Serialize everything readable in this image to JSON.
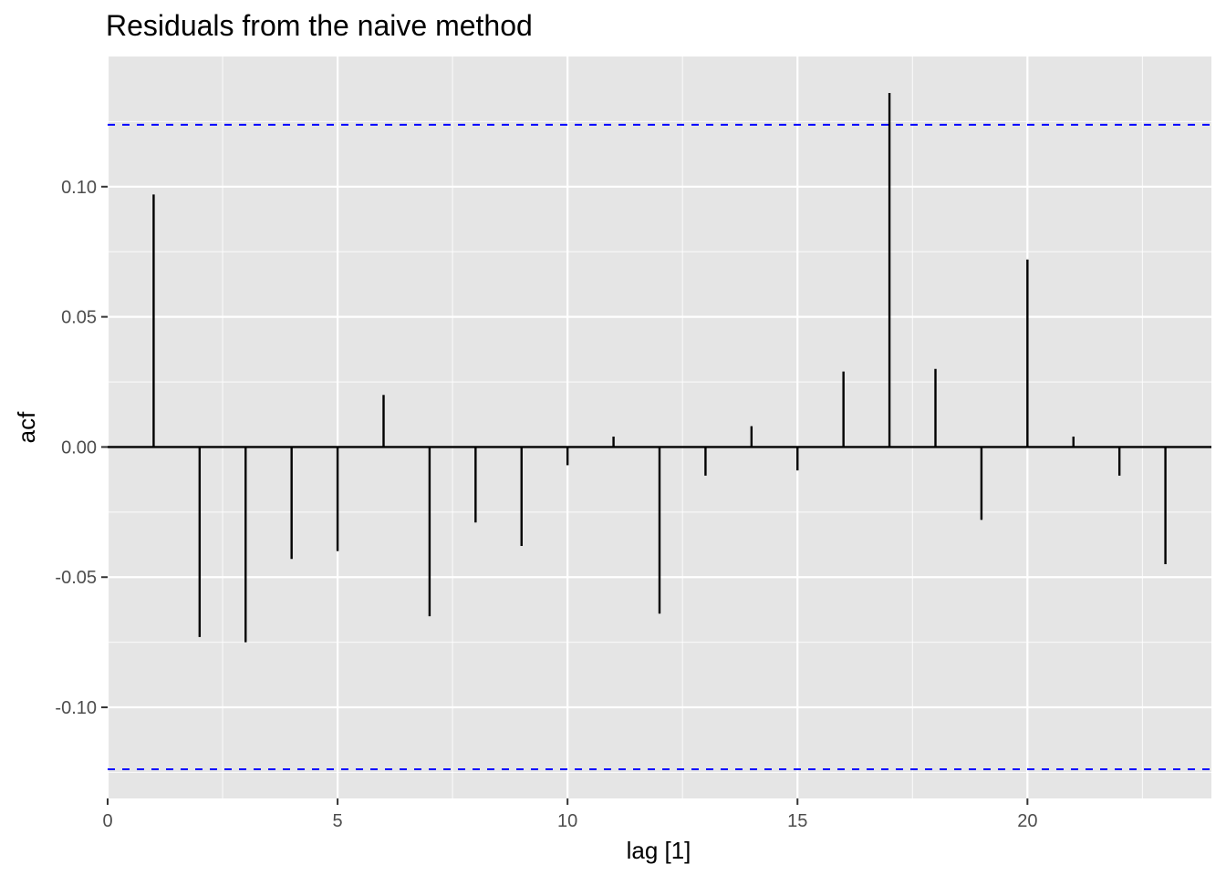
{
  "chart_data": {
    "type": "bar",
    "title": "Residuals from the naive method",
    "xlabel": "lag [1]",
    "ylabel": "acf",
    "xlim": [
      0,
      24
    ],
    "ylim": [
      -0.135,
      0.15
    ],
    "x_ticks": [
      0,
      5,
      10,
      15,
      20
    ],
    "x_tick_labels": [
      "0",
      "5",
      "10",
      "15",
      "20"
    ],
    "y_ticks": [
      -0.1,
      -0.05,
      0.0,
      0.05,
      0.1
    ],
    "y_tick_labels": [
      "-0.10",
      "-0.05",
      "0.00",
      "0.05",
      "0.10"
    ],
    "grid": true,
    "confidence_bound": 0.1238,
    "series": [
      {
        "lags": [
          1,
          2,
          3,
          4,
          5,
          6,
          7,
          8,
          9,
          10,
          11,
          12,
          13,
          14,
          15,
          16,
          17,
          18,
          19,
          20,
          21,
          22,
          23
        ],
        "values": [
          0.097,
          -0.073,
          -0.075,
          -0.043,
          -0.04,
          0.02,
          -0.065,
          -0.029,
          -0.038,
          -0.007,
          0.004,
          -0.064,
          -0.011,
          0.008,
          -0.009,
          0.029,
          0.136,
          0.03,
          -0.028,
          0.072,
          0.004,
          -0.011,
          -0.045
        ]
      }
    ],
    "colors": {
      "panel_background": "#e5e5e5",
      "grid": "#ffffff",
      "spike": "#000000",
      "confidence_line": "#0000ff"
    }
  }
}
